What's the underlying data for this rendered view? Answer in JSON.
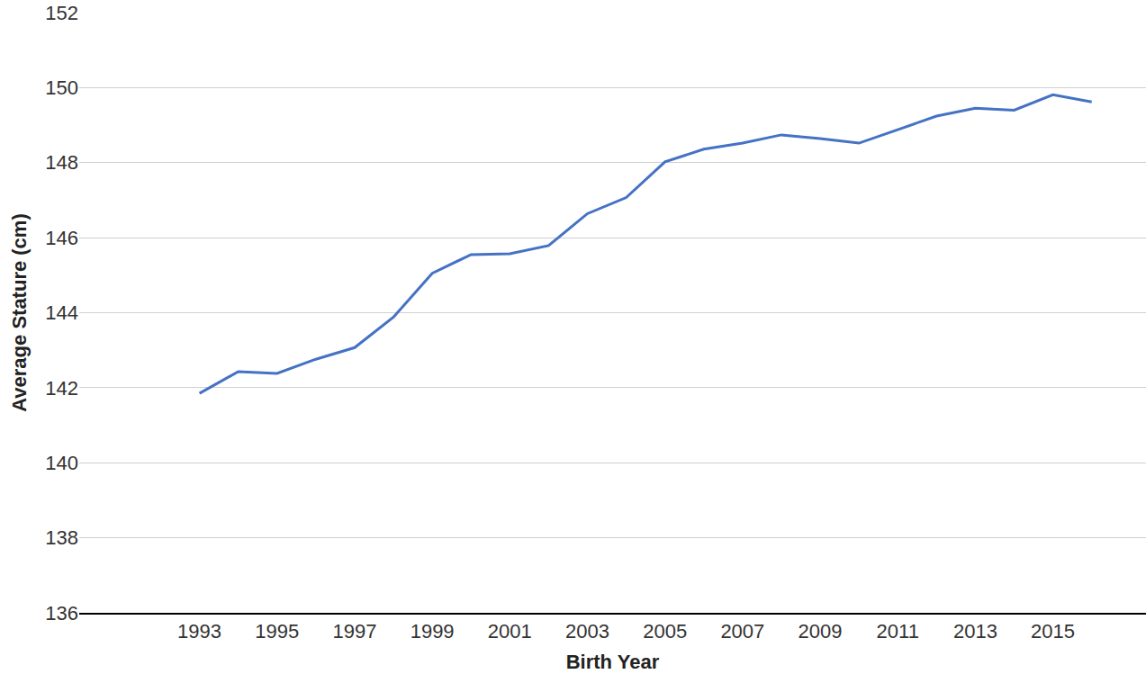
{
  "chart_data": {
    "type": "line",
    "x_label": "Birth Year",
    "y_label": "Average Stature (cm)",
    "x": [
      1993,
      1994,
      1995,
      1996,
      1997,
      1998,
      1999,
      2000,
      2001,
      2002,
      2003,
      2004,
      2005,
      2006,
      2007,
      2008,
      2009,
      2010,
      2011,
      2012,
      2013,
      2014,
      2015,
      2016
    ],
    "values": [
      141.85,
      142.43,
      142.38,
      142.76,
      143.07,
      143.88,
      145.05,
      145.55,
      145.57,
      145.79,
      146.64,
      147.07,
      148.02,
      148.36,
      148.52,
      148.74,
      148.64,
      148.52,
      148.88,
      149.24,
      149.45,
      149.4,
      149.81,
      149.62
    ],
    "color": "#4472c4",
    "xlim": [
      1989.9,
      2017.4
    ],
    "xticks": [
      1993,
      1995,
      1997,
      1999,
      2001,
      2003,
      2005,
      2007,
      2009,
      2011,
      2013,
      2015
    ],
    "ylim": [
      136,
      152
    ],
    "yticks": [
      136,
      138,
      140,
      142,
      144,
      146,
      148,
      150,
      152
    ],
    "grid": true
  }
}
